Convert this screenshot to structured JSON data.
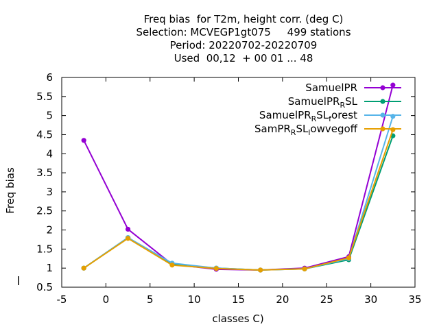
{
  "chart_data": {
    "type": "line",
    "title_lines": [
      "Freq bias  for T2m, height corr. (deg C)",
      "Selection: MCVEGP1gt075     499 stations",
      "Period: 20220702-20220709",
      "Used  00,12  + 00 01 ... 48"
    ],
    "xlabel": "classes C)",
    "ylabel": "Freq bias",
    "xlim": [
      -5,
      35
    ],
    "ylim": [
      0.5,
      6
    ],
    "xticks": [
      "-5",
      "0",
      "5",
      "10",
      "15",
      "20",
      "25",
      "30",
      "35"
    ],
    "yticks": [
      "0.5",
      "1",
      "1.5",
      "2",
      "2.5",
      "3",
      "3.5",
      "4",
      "4.5",
      "5",
      "5.5",
      "6"
    ],
    "legend_position": "top-right",
    "x": [
      -2.5,
      2.5,
      7.5,
      12.5,
      17.5,
      22.5,
      27.5,
      32.5
    ],
    "series": [
      {
        "name": "SamuelPR",
        "legend_main": "SamuelPR",
        "legend_subs": [],
        "color": "#9400d3",
        "marker": "circle",
        "values": [
          4.35,
          2.02,
          1.1,
          0.97,
          0.95,
          1.0,
          1.3,
          5.8
        ]
      },
      {
        "name": "SamuelPR_RSL",
        "legend_main": "SamuelPR",
        "legend_subs": [
          [
            "R",
            "SL"
          ]
        ],
        "color": "#009e73",
        "marker": "circle",
        "values": [
          1.0,
          1.8,
          1.1,
          1.0,
          0.95,
          0.98,
          1.22,
          4.47
        ]
      },
      {
        "name": "SamuelPR_RSL_forest",
        "legend_main": "SamuelPR",
        "legend_subs": [
          [
            "R",
            "SL"
          ],
          [
            "f",
            "orest"
          ]
        ],
        "color": "#56b4e9",
        "marker": "circle",
        "values": [
          1.0,
          1.8,
          1.13,
          1.0,
          0.95,
          0.98,
          1.25,
          4.98
        ]
      },
      {
        "name": "SamPR_RSL_lowvegoff",
        "legend_main": "SamPR",
        "legend_subs": [
          [
            "R",
            "SL"
          ],
          [
            "l",
            "owvegoff"
          ]
        ],
        "color": "#e69f00",
        "marker": "circle",
        "values": [
          1.0,
          1.78,
          1.08,
          0.99,
          0.95,
          0.98,
          1.27,
          4.63
        ]
      }
    ]
  }
}
